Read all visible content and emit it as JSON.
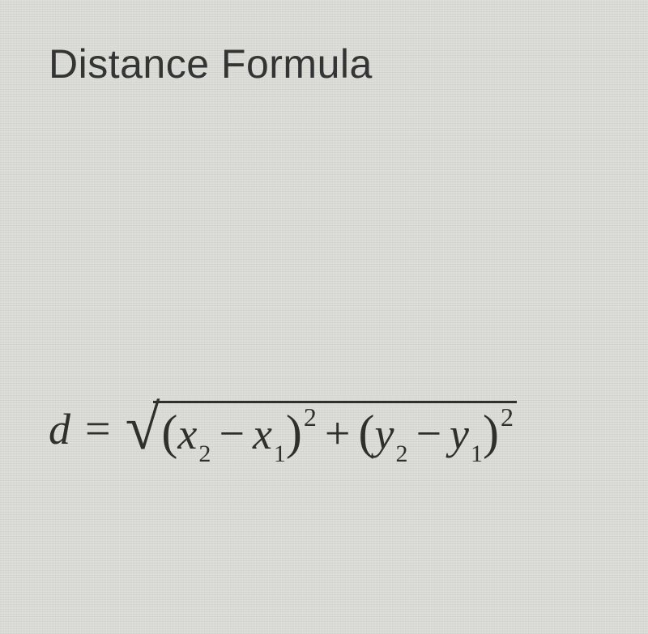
{
  "title": "Distance Formula",
  "formula": {
    "lhs": "d",
    "equals": "=",
    "radical_surd": "√",
    "terms": {
      "lparen1": "(",
      "x2": "x",
      "x2_sub": "2",
      "minus1": "−",
      "x1": "x",
      "x1_sub": "1",
      "rparen1": ")",
      "sq1": "2",
      "plus": "+",
      "lparen2": "(",
      "y2": "y",
      "y2_sub": "2",
      "minus2": "−",
      "y1": "y",
      "y1_sub": "1",
      "rparen2": ")",
      "sq2": "2"
    }
  },
  "colors": {
    "background": "#dedfdb",
    "text": "#2f302d"
  },
  "typography": {
    "title_fontsize": 50,
    "formula_fontsize": 56,
    "sub_fontsize": 30,
    "sup_fontsize": 32
  }
}
